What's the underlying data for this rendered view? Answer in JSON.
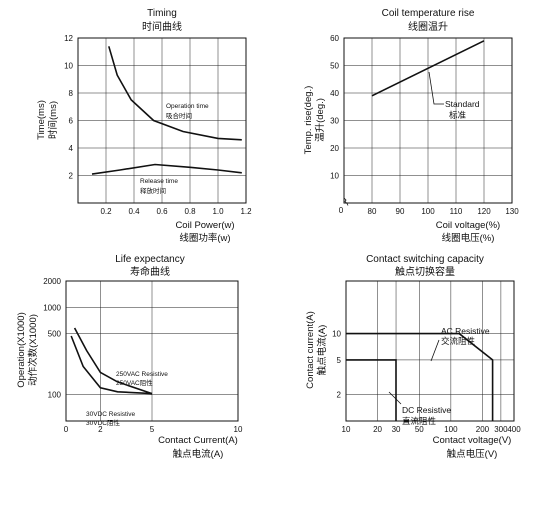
{
  "chart_data": [
    {
      "type": "line",
      "title": "Timing",
      "title_cn": "时间曲线",
      "xlabel": "Coil Power(w)",
      "xlabel_cn": "线圈功率(w)",
      "ylabel": "Time(ms)",
      "ylabel_cn": "时间(ms)",
      "xlim": [
        0,
        1.2
      ],
      "ylim": [
        0,
        12
      ],
      "xticks": [
        0.2,
        0.4,
        0.6,
        0.8,
        1.0,
        1.2
      ],
      "xtick_labels": [
        "0.2",
        "0.4",
        "0.6",
        "0.8",
        "1.0",
        "1.2"
      ],
      "yticks": [
        2,
        4,
        6,
        8,
        10,
        12
      ],
      "ytick_labels": [
        "2",
        "4",
        "6",
        "8",
        "10",
        "12"
      ],
      "grid": true,
      "series": [
        {
          "name": "Operation time",
          "name_cn": "吸合时间",
          "x": [
            0.22,
            0.28,
            0.38,
            0.54,
            0.75,
            1.0,
            1.17
          ],
          "y": [
            11.4,
            9.3,
            7.5,
            6.0,
            5.2,
            4.7,
            4.6
          ]
        },
        {
          "name": "Release time",
          "name_cn": "释放时间",
          "x": [
            0.1,
            0.3,
            0.55,
            0.8,
            1.0,
            1.17
          ],
          "y": [
            2.1,
            2.4,
            2.8,
            2.6,
            2.4,
            2.2
          ]
        }
      ]
    },
    {
      "type": "line",
      "title": "Coil temperature rise",
      "title_cn": "线圈温升",
      "xlabel": "Coil voltage(%)",
      "xlabel_cn": "线圈电压(%)",
      "ylabel": "Temp. rise(deg.)",
      "ylabel_cn": "温升(deg.)",
      "xlim": [
        70,
        130
      ],
      "ylim": [
        0,
        60
      ],
      "xticks": [
        80,
        90,
        100,
        110,
        120,
        130
      ],
      "xtick_labels": [
        "80",
        "90",
        "100",
        "110",
        "120",
        "130"
      ],
      "yticks": [
        10,
        20,
        30,
        40,
        50,
        60
      ],
      "ytick_labels": [
        "10",
        "20",
        "30",
        "40",
        "50",
        "60"
      ],
      "origin_label": "0",
      "grid": true,
      "series": [
        {
          "name": "Standard",
          "name_cn": "标准",
          "x": [
            80,
            120
          ],
          "y": [
            39,
            59
          ]
        }
      ]
    },
    {
      "type": "line",
      "title": "Life expectancy",
      "title_cn": "寿命曲线",
      "xlabel": "Contact Current(A)",
      "xlabel_cn": "触点电流(A)",
      "ylabel": "Operation(X1000)",
      "ylabel_cn": "动作次数(X1000)",
      "xlim": [
        0,
        10
      ],
      "ylim": [
        50,
        2000
      ],
      "yscale": "log",
      "xticks": [
        0,
        2,
        5,
        10
      ],
      "xtick_labels": [
        "0",
        "2",
        "5",
        "10"
      ],
      "yticks": [
        100,
        500,
        1000,
        2000
      ],
      "ytick_labels": [
        "100",
        "500",
        "1000",
        "2000"
      ],
      "grid": true,
      "series": [
        {
          "name": "250VAC Resistive",
          "name_cn": "250VAC阻性",
          "x": [
            0.5,
            1.2,
            2.0,
            3.0,
            5.0
          ],
          "y": [
            580,
            320,
            180,
            140,
            103
          ]
        },
        {
          "name": "30VDC Resistive",
          "name_cn": "30VDC阻性",
          "x": [
            0.3,
            1.0,
            2.0,
            3.0,
            5.0
          ],
          "y": [
            470,
            210,
            120,
            108,
            103
          ]
        }
      ]
    },
    {
      "type": "line",
      "title": "Contact switching capacity",
      "title_cn": "触点切换容量",
      "xlabel": "Contact voltage(V)",
      "xlabel_cn": "触点电压(V)",
      "ylabel": "Contact current(A)",
      "ylabel_cn": "触点电流(A)",
      "xscale": "log",
      "yscale": "log",
      "xlim": [
        10,
        400
      ],
      "ylim": [
        1,
        40
      ],
      "xticks": [
        10,
        20,
        30,
        50,
        100,
        200,
        300,
        400
      ],
      "xtick_labels": [
        "10",
        "20",
        "30",
        "50",
        "100",
        "200",
        "300",
        "400"
      ],
      "yticks": [
        2,
        5,
        10
      ],
      "ytick_labels": [
        "2",
        "5",
        "10"
      ],
      "grid": true,
      "series": [
        {
          "name": "AC Resistive",
          "name_cn": "交流阻性",
          "x": [
            10,
            120,
            250,
            250
          ],
          "y": [
            10,
            10,
            5,
            1
          ]
        },
        {
          "name": "DC Resistive",
          "name_cn": "直流阻性",
          "x": [
            10,
            30,
            30
          ],
          "y": [
            5,
            5,
            1
          ]
        }
      ]
    }
  ]
}
